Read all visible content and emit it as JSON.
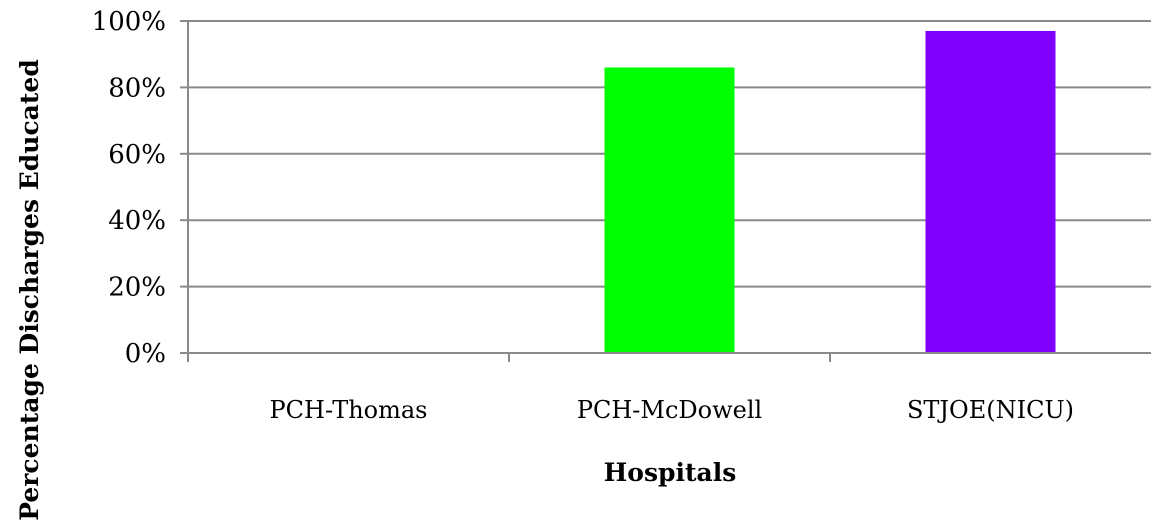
{
  "chart_data": {
    "type": "bar",
    "categories": [
      "PCH-Thomas",
      "PCH-McDowell",
      "STJOE(NICU)"
    ],
    "values": [
      0,
      86,
      97
    ],
    "bar_colors": [
      "#00ff00",
      "#00ff00",
      "#8000ff"
    ],
    "xlabel": "Hospitals",
    "ylabel": "Percentage Discharges Educated",
    "ylim": [
      0,
      100
    ],
    "y_ticks": [
      0,
      20,
      40,
      60,
      80,
      100
    ],
    "y_tick_labels": [
      "0%",
      "20%",
      "40%",
      "60%",
      "80%",
      "100%"
    ],
    "grid": true,
    "legend": "none"
  }
}
